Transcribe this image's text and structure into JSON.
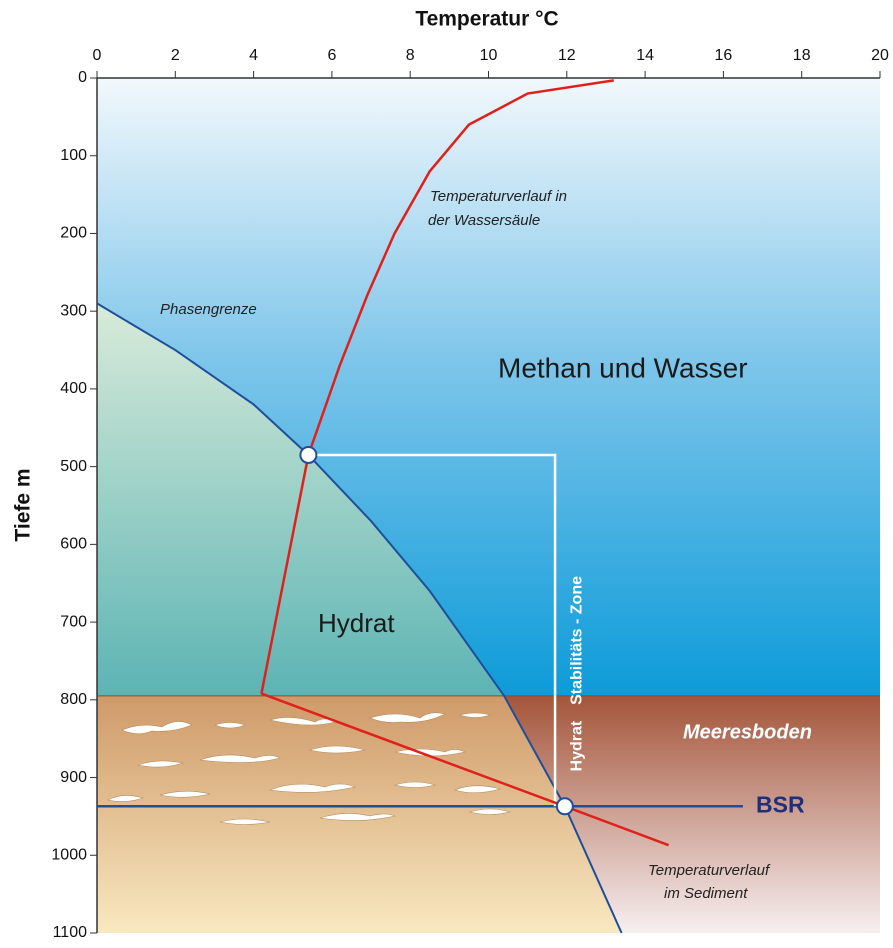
{
  "chart_data": {
    "type": "phase-diagram",
    "x_label": "Temperatur °C",
    "y_label": "Tiefe m",
    "xlim": [
      0,
      20
    ],
    "ylim": [
      0,
      1100
    ],
    "xticks": [
      0,
      2,
      4,
      6,
      8,
      10,
      12,
      14,
      16,
      18,
      20
    ],
    "yticks": [
      0,
      100,
      200,
      300,
      400,
      500,
      600,
      700,
      800,
      900,
      1000,
      1100
    ],
    "phase_boundary": {
      "label": "Phasengrenze",
      "color": "#1f4e9a",
      "x": [
        0,
        2,
        4,
        5.4,
        7,
        8.5,
        10.4,
        11.95,
        13.4
      ],
      "y": [
        290,
        350,
        420,
        485,
        570,
        660,
        795,
        937,
        1100
      ]
    },
    "temperature_water": {
      "label_lines": [
        "Temperaturverlauf in",
        "der Wassersäule"
      ],
      "color": "#e0201b",
      "x": [
        13.2,
        11,
        9.5,
        8.5,
        7.6,
        6.9,
        6.2,
        5.4,
        4.2
      ],
      "y": [
        3,
        20,
        60,
        120,
        200,
        280,
        370,
        485,
        792
      ]
    },
    "temperature_sediment": {
      "label_lines": [
        "Temperaturverlauf",
        "im Sediment"
      ],
      "color": "#e0201b",
      "x": [
        4.2,
        11.95,
        14.6
      ],
      "y": [
        792,
        937,
        987
      ]
    },
    "regions": {
      "water": "Methan und Wasser",
      "hydrate": "Hydrat"
    },
    "seafloor": {
      "label": "Meeresboden",
      "depth": 795
    },
    "bsr": {
      "label": "BSR",
      "depth": 937,
      "x_end": 16.5,
      "color": "#1f4e9a"
    },
    "stability_zone": {
      "labels": [
        "Hydrat",
        "Stabilitäts - Zone"
      ],
      "top": 485,
      "bottom": 937,
      "x": 11.7
    },
    "points": [
      {
        "x": 5.4,
        "y": 485
      },
      {
        "x": 11.95,
        "y": 937
      }
    ]
  }
}
